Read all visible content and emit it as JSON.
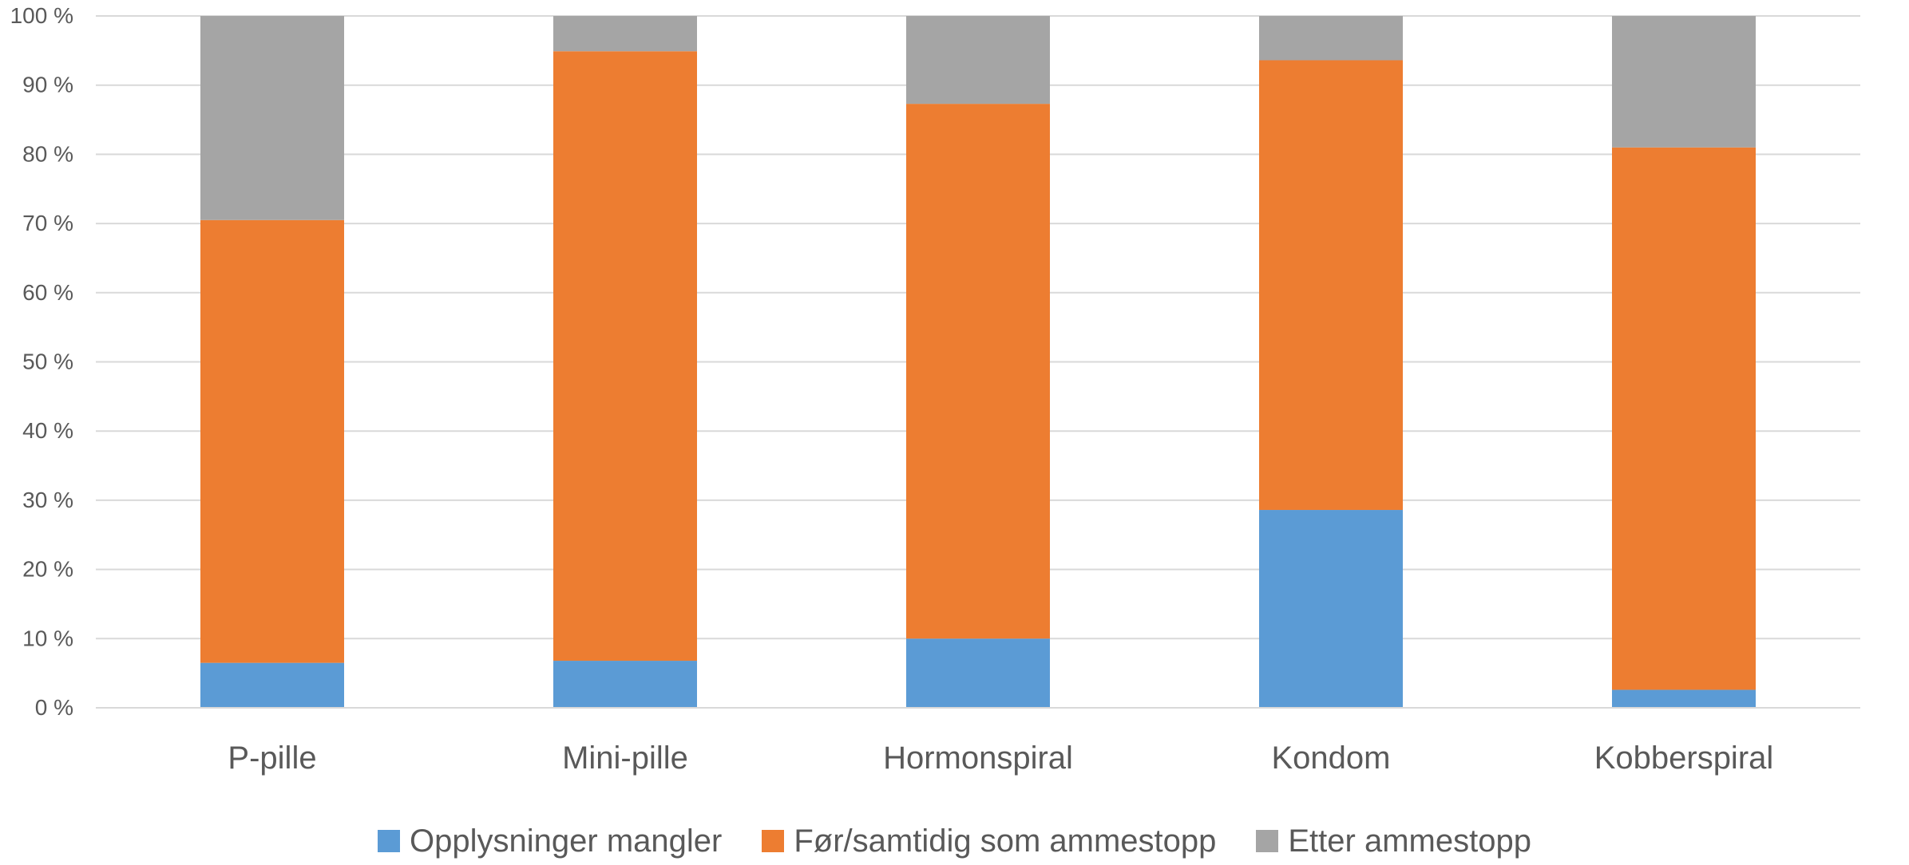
{
  "chart_data": {
    "type": "bar",
    "stacked": true,
    "normalized": true,
    "categories": [
      "P-pille",
      "Mini-pille",
      "Hormonspiral",
      "Kondom",
      "Kobberspiral"
    ],
    "series": [
      {
        "name": "Opplysninger mangler",
        "color": "#5B9BD5",
        "values": [
          6.5,
          6.8,
          10.0,
          28.6,
          2.6
        ]
      },
      {
        "name": "Før/samtidig som ammestopp",
        "color": "#ED7D31",
        "values": [
          64.0,
          88.1,
          77.3,
          65.0,
          78.4
        ]
      },
      {
        "name": "Etter ammestopp",
        "color": "#A5A5A5",
        "values": [
          29.5,
          5.1,
          12.7,
          6.4,
          19.0
        ]
      }
    ],
    "ylim": [
      0,
      100
    ],
    "yticks": [
      "0 %",
      "10 %",
      "20 %",
      "30 %",
      "40 %",
      "50 %",
      "60 %",
      "70 %",
      "80 %",
      "90 %",
      "100 %"
    ],
    "grid": true,
    "legend": "bottom"
  }
}
